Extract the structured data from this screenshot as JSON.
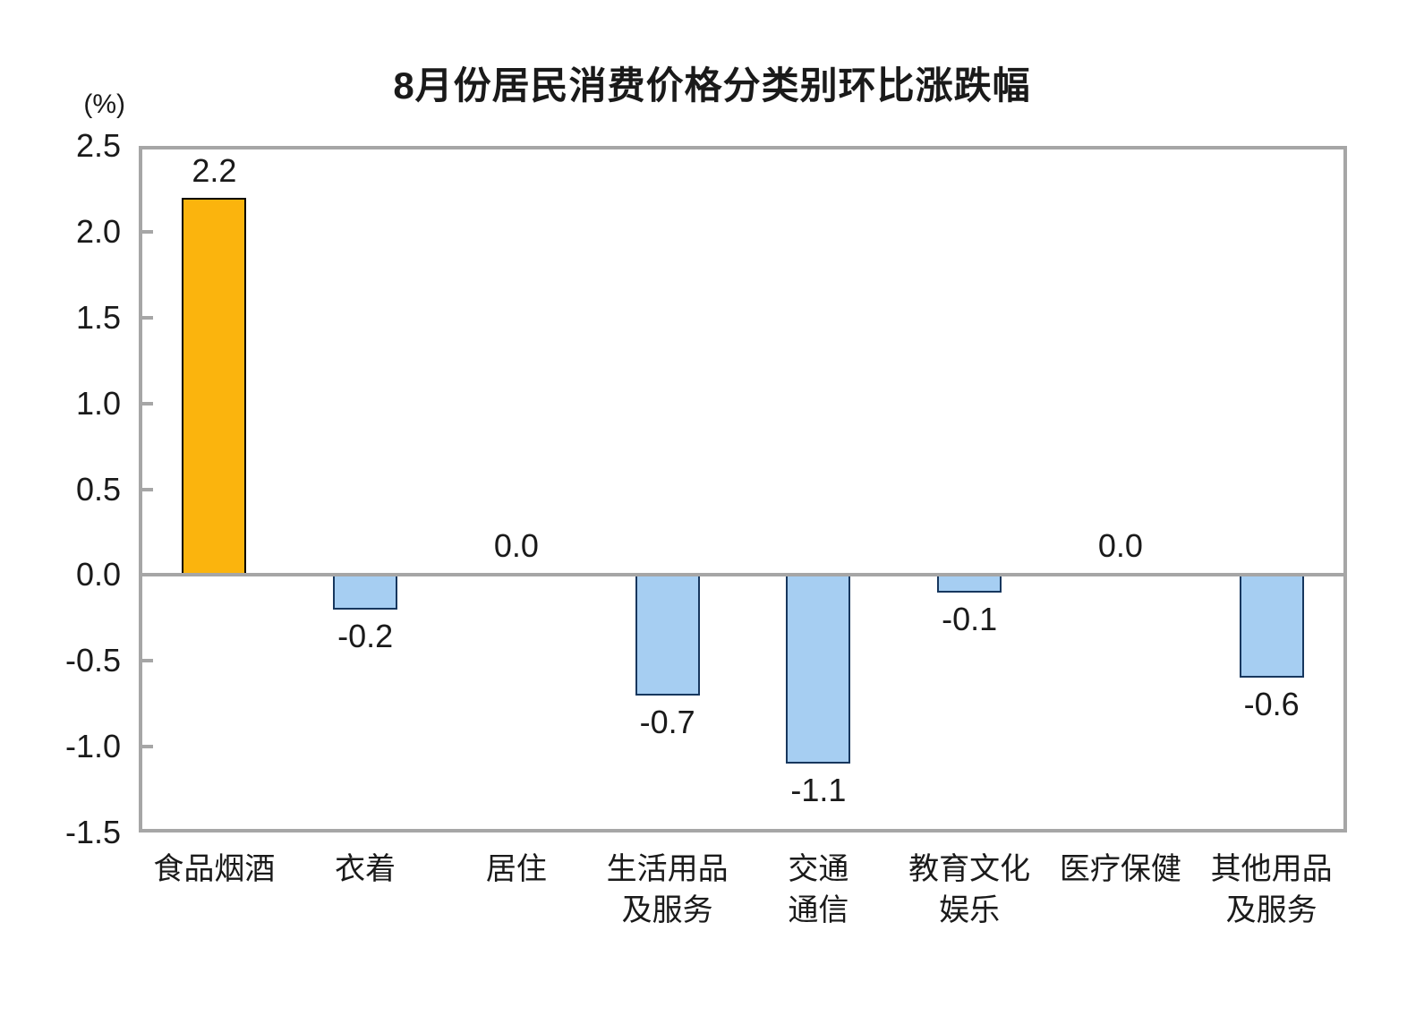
{
  "chart_data": {
    "type": "bar",
    "title": "8月份居民消费价格分类别环比涨跌幅",
    "unit_label": "(%)",
    "categories": [
      "食品烟酒",
      "衣着",
      "居住",
      "生活用品\n及服务",
      "交通\n通信",
      "教育文化\n娱乐",
      "医疗保健",
      "其他用品\n及服务"
    ],
    "values": [
      2.2,
      -0.2,
      0.0,
      -0.7,
      -1.1,
      -0.1,
      0.0,
      -0.6
    ],
    "value_labels": [
      "2.2",
      "-0.2",
      "0.0",
      "-0.7",
      "-1.1",
      "-0.1",
      "0.0",
      "-0.6"
    ],
    "xlabel": "",
    "ylabel": "(%)",
    "ylim": [
      -1.5,
      2.5
    ],
    "ytick_step": 0.5,
    "ytick_labels": [
      "2.5",
      "2.0",
      "1.5",
      "1.0",
      "0.5",
      "0.0",
      "-0.5",
      "-1.0",
      "-1.5"
    ],
    "grid": false,
    "legend_position": "none",
    "colors": {
      "positive_bar_fill": "#fbb40d",
      "positive_bar_border": "#000000",
      "negative_bar_fill": "#a6cef2",
      "negative_bar_border": "#17375e",
      "axis_line": "#a6a6a6",
      "text": "#1a1a1a",
      "background": "#ffffff"
    }
  }
}
